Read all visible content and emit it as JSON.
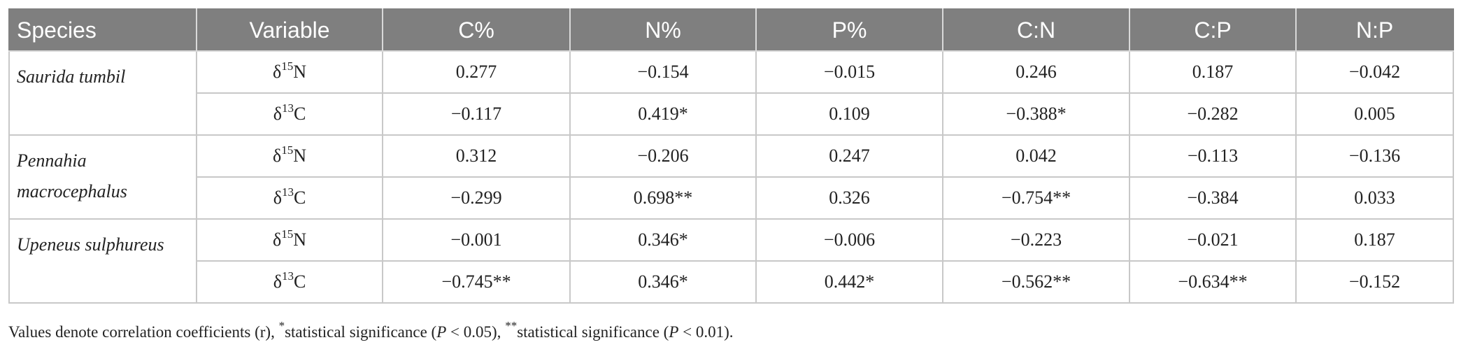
{
  "table": {
    "headers": [
      "Species",
      "Variable",
      "C%",
      "N%",
      "P%",
      "C:N",
      "C:P",
      "N:P"
    ],
    "groups": [
      {
        "species": "Saurida tumbil",
        "rows": [
          {
            "delta": "δ",
            "mass": "15",
            "element": "N",
            "values": [
              "0.277",
              "−0.154",
              "−0.015",
              "0.246",
              "0.187",
              "−0.042"
            ]
          },
          {
            "delta": "δ",
            "mass": "13",
            "element": "C",
            "values": [
              "−0.117",
              "0.419*",
              "0.109",
              "−0.388*",
              "−0.282",
              "0.005"
            ]
          }
        ]
      },
      {
        "species": "Pennahia macrocephalus",
        "rows": [
          {
            "delta": "δ",
            "mass": "15",
            "element": "N",
            "values": [
              "0.312",
              "−0.206",
              "0.247",
              "0.042",
              "−0.113",
              "−0.136"
            ]
          },
          {
            "delta": "δ",
            "mass": "13",
            "element": "C",
            "values": [
              "−0.299",
              "0.698**",
              "0.326",
              "−0.754**",
              "−0.384",
              "0.033"
            ]
          }
        ]
      },
      {
        "species": "Upeneus sulphureus",
        "rows": [
          {
            "delta": "δ",
            "mass": "15",
            "element": "N",
            "values": [
              "−0.001",
              "0.346*",
              "−0.006",
              "−0.223",
              "−0.021",
              "0.187"
            ]
          },
          {
            "delta": "δ",
            "mass": "13",
            "element": "C",
            "values": [
              "−0.745**",
              "0.346*",
              "0.442*",
              "−0.562**",
              "−0.634**",
              "−0.152"
            ]
          }
        ]
      }
    ]
  },
  "footnote": {
    "intro": "Values denote correlation coefficients (r), ",
    "sig1_mark": "*",
    "sig1_text": "statistical significance (",
    "p_symbol": "P",
    "sig1_value": " < 0.05), ",
    "sig2_mark": "**",
    "sig2_text": "statistical significance (",
    "sig2_value": " < 0.01)."
  }
}
